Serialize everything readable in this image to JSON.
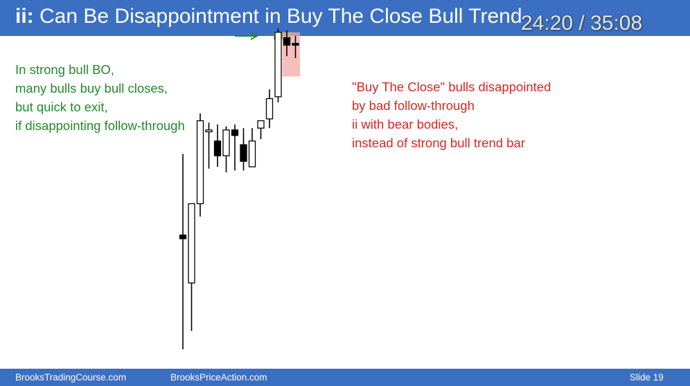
{
  "header": {
    "title_prefix": "ii:",
    "title": "Can Be Disappointment in Buy The Close Bull Trend",
    "timer": "24:20 / 35:08"
  },
  "notes": {
    "green": [
      "In strong bull BO,",
      "many bulls buy bull closes,",
      "but quick to exit,",
      "if disappointing follow-through"
    ],
    "red": [
      "\"Buy The Close\" bulls disappointed",
      "by bad follow-through",
      "ii with bear bodies,",
      "instead of strong bull trend bar"
    ]
  },
  "footer": {
    "left": "BrooksTradingCourse.com",
    "mid": "BrooksPriceAction.com",
    "slide": "Slide  19"
  },
  "colors": {
    "title_bar": "#3b6fc2",
    "green_text": "#218a2b",
    "red_text": "#d9271f",
    "green_highlight": "#5cb85c",
    "red_highlight": "#f4a9a6"
  },
  "chart_data": {
    "type": "candlestick",
    "candles": [
      {
        "o": 18.0,
        "h": 40.0,
        "l": -13.0,
        "c": 17.0
      },
      {
        "o": 5.0,
        "h": 26.0,
        "l": -8.0,
        "c": 26.5
      },
      {
        "o": 26.5,
        "h": 51.0,
        "l": 23.0,
        "c": 49.0
      },
      {
        "o": 46.0,
        "h": 48.5,
        "l": 36.0,
        "c": 46.5
      },
      {
        "o": 43.5,
        "h": 48.0,
        "l": 36.5,
        "c": 39.5
      },
      {
        "o": 39.5,
        "h": 47.5,
        "l": 35.0,
        "c": 46.5
      },
      {
        "o": 46.5,
        "h": 48.0,
        "l": 35.5,
        "c": 45.0
      },
      {
        "o": 42.5,
        "h": 47.0,
        "l": 35.5,
        "c": 38.0
      },
      {
        "o": 36.5,
        "h": 47.0,
        "l": 36.5,
        "c": 43.5
      },
      {
        "o": 47.0,
        "h": 48.5,
        "l": 44.0,
        "c": 49.0
      },
      {
        "o": 49.5,
        "h": 57.5,
        "l": 47.0,
        "c": 55.0
      },
      {
        "o": 55.5,
        "h": 74.0,
        "l": 54.0,
        "c": 73.0
      },
      {
        "o": 71.5,
        "h": 73.5,
        "l": 66.5,
        "c": 69.5
      },
      {
        "o": 70.0,
        "h": 72.0,
        "l": 66.0,
        "c": 69.5
      }
    ],
    "highlights": [
      {
        "color": "green",
        "from_candle": 11,
        "to_candle": 12,
        "lo": 71.0,
        "hi": 73.0
      },
      {
        "color": "red",
        "from_candle": 12,
        "to_candle": 13,
        "lo": 61.0,
        "hi": 73.0
      }
    ],
    "arrow": {
      "points_to_candle": 11,
      "level": 72.0,
      "color": "green"
    }
  }
}
